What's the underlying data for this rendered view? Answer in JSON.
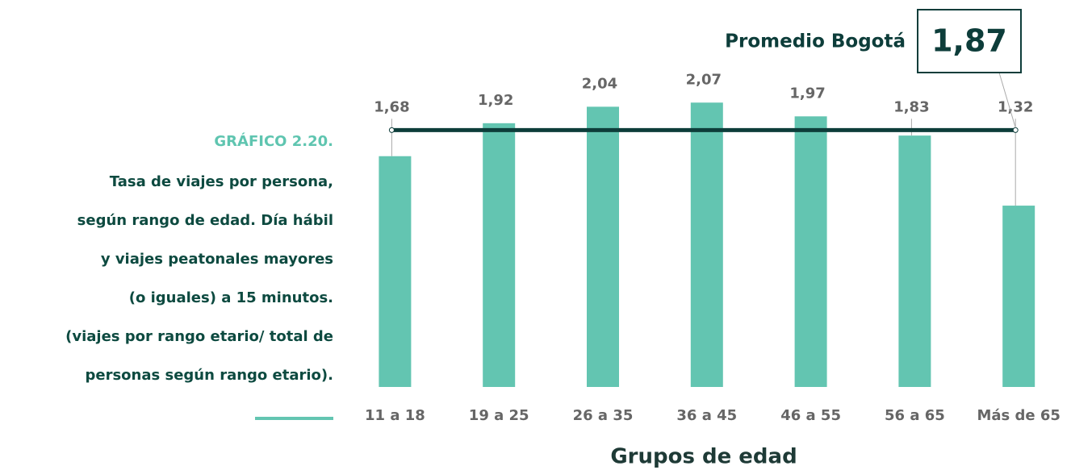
{
  "chart_data": {
    "type": "bar",
    "title": "GRÁFICO 2.20.",
    "subtitle_lines": [
      "Tasa de viajes por persona,",
      "según rango de edad. Día hábil",
      "y viajes peatonales mayores",
      "(o iguales) a 15 minutos.",
      "(viajes por rango etario/ total de",
      "personas según rango etario)."
    ],
    "x_label": "Grupos de edad",
    "categories": [
      "11 a 18",
      "19 a 25",
      "26 a 35",
      "36 a 45",
      "46 a 55",
      "56 a 65",
      "Más de 65"
    ],
    "values": [
      1.68,
      1.92,
      2.04,
      2.07,
      1.97,
      1.83,
      1.32
    ],
    "value_labels": [
      "1,68",
      "1,92",
      "2,04",
      "2,07",
      "1,97",
      "1,83",
      "1,32"
    ],
    "color": "#63c5b1",
    "ylim": [
      0,
      2.5
    ],
    "average": {
      "label": "Promedio Bogotá",
      "value": 1.87,
      "value_label": "1,87",
      "color": "#0d3d3a"
    }
  }
}
